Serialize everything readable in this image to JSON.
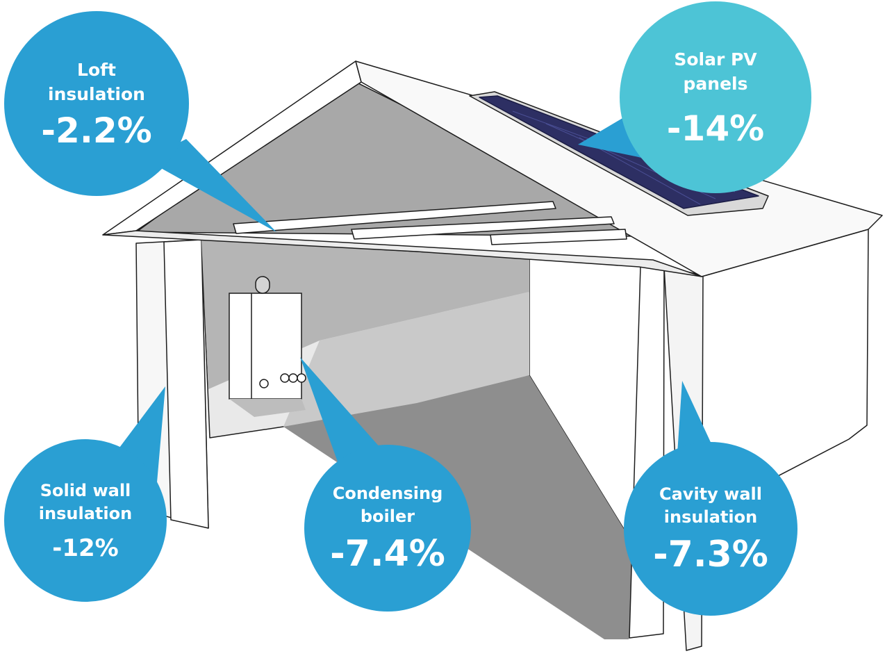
{
  "colors": {
    "bubble_blue": "#2a9fd3",
    "bubble_cyan": "#4dc4d6",
    "solar_panel": "#2d2f63",
    "shadow_gray": "#a6a6a6",
    "wall_white": "#f4f4f4",
    "outline": "#1c1c1c"
  },
  "icons": {
    "house": "house-illustration",
    "boiler": "boiler-icon",
    "solar_panel": "solar-panel-icon"
  },
  "measures": {
    "loft": {
      "label_line1": "Loft",
      "label_line2": "insulation",
      "value": "-2.2%"
    },
    "solar": {
      "label_line1": "Solar PV",
      "label_line2": "panels",
      "value": "-14%"
    },
    "solid_wall": {
      "label_line1": "Solid wall",
      "label_line2": "insulation",
      "value": "-12%"
    },
    "boiler": {
      "label_line1": "Condensing",
      "label_line2": "boiler",
      "value": "-7.4%"
    },
    "cavity_wall": {
      "label_line1": "Cavity wall",
      "label_line2": "insulation",
      "value": "-7.3%"
    }
  }
}
